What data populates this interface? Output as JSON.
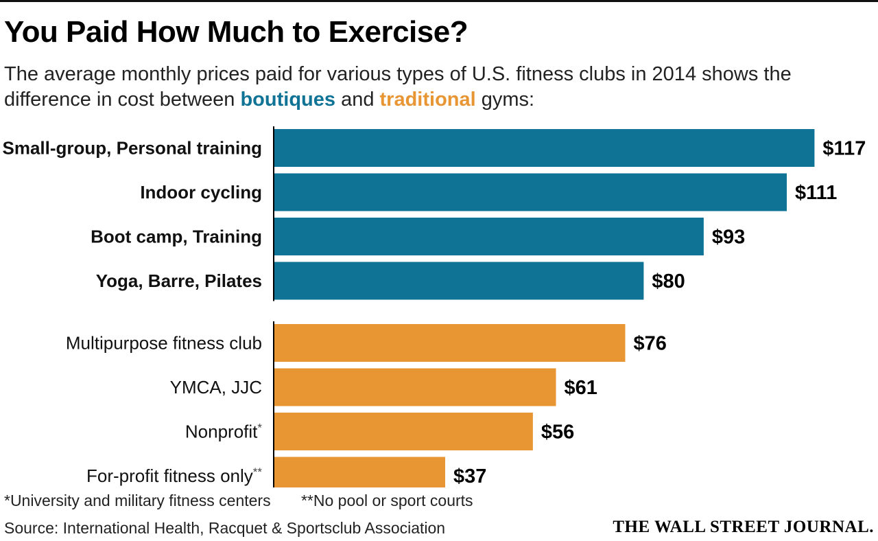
{
  "header": {
    "title": "You Paid How Much to Exercise?",
    "subtitle_pre": "The average monthly prices paid for various types of U.S. fitness clubs in 2014 shows the difference in cost between ",
    "subtitle_kw1": "boutiques",
    "subtitle_mid": " and ",
    "subtitle_kw2": "traditional",
    "subtitle_post": " gyms:"
  },
  "chart_data": {
    "type": "bar",
    "orientation": "horizontal",
    "value_prefix": "$",
    "groups": [
      {
        "name": "boutiques",
        "color": "#0f7396",
        "items": [
          {
            "category": "Small-group, Personal training",
            "value": 117,
            "label": "$117"
          },
          {
            "category": "Indoor cycling",
            "value": 111,
            "label": "$111"
          },
          {
            "category": "Boot camp, Training",
            "value": 93,
            "label": "$93"
          },
          {
            "category": "Yoga, Barre, Pilates",
            "value": 80,
            "label": "$80"
          }
        ]
      },
      {
        "name": "traditional",
        "color": "#e89533",
        "items": [
          {
            "category": "Multipurpose fitness club",
            "value": 76,
            "label": "$76"
          },
          {
            "category": "YMCA, JJC",
            "value": 61,
            "label": "$61"
          },
          {
            "category": "Nonprofit",
            "marker": "*",
            "value": 56,
            "label": "$56"
          },
          {
            "category": "For-profit fitness only",
            "marker": "**",
            "value": 37,
            "label": "$37"
          }
        ]
      }
    ]
  },
  "footer": {
    "note1": "*University and military fitness centers",
    "note2": "**No pool or sport courts",
    "source": "Source: International Health, Racquet & Sportsclub Association",
    "brand": "THE WALL STREET JOURNAL."
  }
}
